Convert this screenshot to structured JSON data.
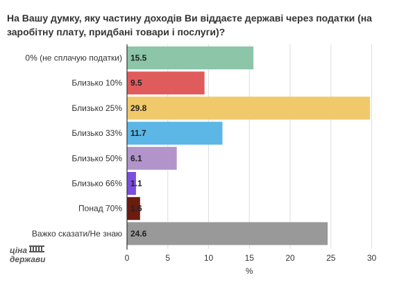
{
  "chart_data": {
    "type": "bar",
    "orientation": "horizontal",
    "title": "На Вашу думку, яку частину доходів Ви віддаєте державі через податки (на заробітну плату, придбані товари і послуги)?",
    "xlabel": "%",
    "ylabel": "",
    "xlim": [
      0,
      30
    ],
    "xticks": [
      0,
      5,
      10,
      15,
      20,
      25,
      30
    ],
    "grid": true,
    "categories": [
      "0% (не сплачую податки)",
      "Близько 10%",
      "Близько 25%",
      "Близько 33%",
      "Близько 50%",
      "Близько 66%",
      "Понад 70%",
      "Важко сказати/Не знаю"
    ],
    "values": [
      15.5,
      9.5,
      29.8,
      11.7,
      6.1,
      1.1,
      1.6,
      24.6
    ],
    "value_labels": [
      "15.5",
      "9.5",
      "29.8",
      "11.7",
      "6.1",
      "1.1",
      "1.6",
      "24.6"
    ],
    "colors": [
      "#8cc5a8",
      "#e05c5c",
      "#f0c96a",
      "#5cb6e6",
      "#b294cb",
      "#7a4fe0",
      "#6b1b10",
      "#999999"
    ],
    "value_label_colors": [
      "#222222",
      "#ffffff",
      "#222222",
      "#222222",
      "#222222",
      "#222222",
      "#222222",
      "#222222"
    ]
  },
  "logo": {
    "line1": "ціна",
    "line2": "держави",
    "color": "#555555"
  }
}
